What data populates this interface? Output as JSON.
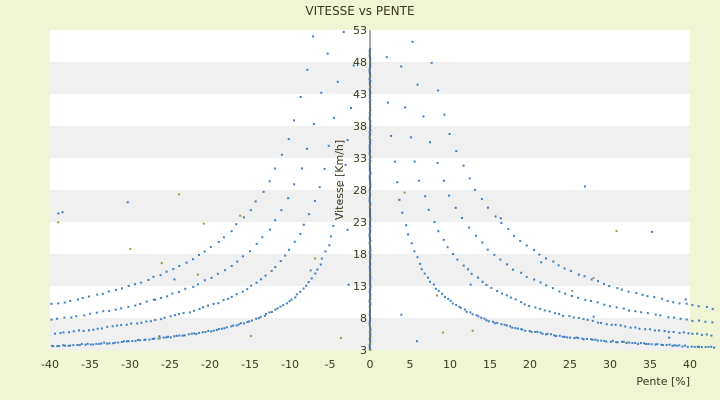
{
  "chart_data": {
    "type": "scatter",
    "title": "VITESSE vs PENTE",
    "xlabel": "Pente [%]",
    "ylabel": "Vitesse [Km/h]",
    "xlim": [
      -40,
      40
    ],
    "ylim": [
      3,
      53
    ],
    "x_ticks": [
      -40,
      -35,
      -30,
      -25,
      -20,
      -15,
      -10,
      -5,
      0,
      5,
      10,
      15,
      20,
      25,
      30,
      35,
      40
    ],
    "y_ticks": [
      3,
      8,
      13,
      18,
      23,
      28,
      33,
      38,
      43,
      48,
      53
    ],
    "grid": "horizontal bands",
    "legend": "none",
    "colors": {
      "background": "#eff5d5",
      "plot_band_light": "#ffffff",
      "plot_band_dark": "#f0f0f0",
      "points_main": "#3f7fc4",
      "points_secondary": "#9aa040"
    },
    "series": [
      {
        "description_points": "speed clusters following hyperbolic curves vs slope",
        "curves": [
          {
            "k": 95,
            "side": "both"
          },
          {
            "k": 175,
            "side": "both"
          },
          {
            "k": 260,
            "side": "both"
          },
          {
            "k": 355,
            "side": "both"
          }
        ],
        "vertical_stack_at_zero": [
          3,
          50
        ]
      }
    ]
  }
}
